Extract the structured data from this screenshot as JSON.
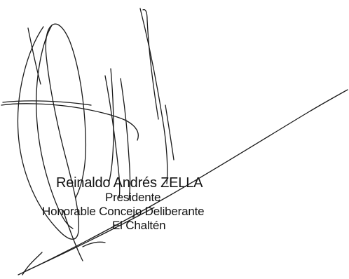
{
  "stamp": {
    "name": "Reinaldo Andrés ZELLA",
    "role": "Presidente",
    "organization": "Honorable Concejo Deliberante",
    "place": "El Chaltén"
  },
  "colors": {
    "ink": "#141414",
    "background": "#ffffff"
  }
}
